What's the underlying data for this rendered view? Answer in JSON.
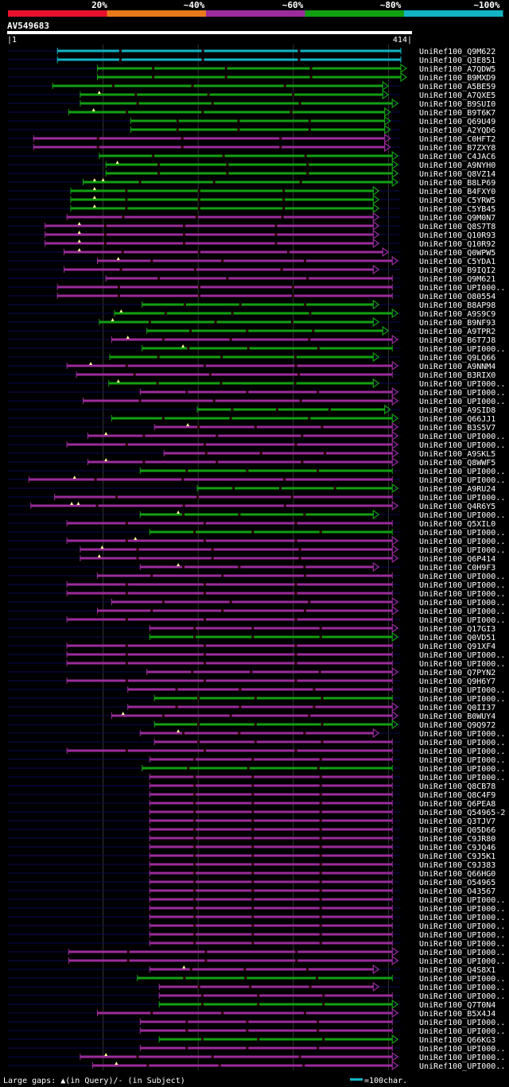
{
  "legend": {
    "labels": [
      "20%",
      "~40%",
      "~60%",
      "~80%",
      "~100%"
    ],
    "colors": [
      "#e8112d",
      "#e87a1b",
      "#9b2c9b",
      "#12a012",
      "#12b4c4"
    ]
  },
  "query": {
    "id": "AV549683",
    "start_label": "|1",
    "end_label": "414|",
    "length": 414
  },
  "footer": {
    "gaps_text": "Large gaps: ▲(in Query)/- (in Subject)",
    "scale_text": "=100char."
  },
  "colors": {
    "background": "#000000",
    "backbone": "#0a0a55",
    "grid": "#333333",
    "subject_gap": "#330000",
    "gap_marker": "#ffff99"
  },
  "hits": [
    {
      "name": "UniRef100_Q9M622",
      "start": 53,
      "end": 414,
      "color": "#12b4c4",
      "arrow": false,
      "gaps_q": []
    },
    {
      "name": "UniRef100_Q3E851",
      "start": 53,
      "end": 414,
      "color": "#12b4c4",
      "arrow": false,
      "gaps_q": []
    },
    {
      "name": "UniRef100_A7QDW5",
      "start": 95,
      "end": 414,
      "color": "#12a012",
      "arrow": true,
      "gaps_q": []
    },
    {
      "name": "UniRef100_B9MXD9",
      "start": 95,
      "end": 414,
      "color": "#12a012",
      "arrow": true,
      "gaps_q": []
    },
    {
      "name": "UniRef100_A5BE59",
      "start": 48,
      "end": 395,
      "color": "#12a012",
      "arrow": true,
      "gaps_q": []
    },
    {
      "name": "UniRef100_A7QXE5",
      "start": 77,
      "end": 395,
      "color": "#12a012",
      "arrow": true,
      "gaps_q": [
        97
      ]
    },
    {
      "name": "UniRef100_B9SUI0",
      "start": 77,
      "end": 405,
      "color": "#12a012",
      "arrow": true,
      "gaps_q": []
    },
    {
      "name": "UniRef100_B9T6K7",
      "start": 65,
      "end": 397,
      "color": "#12a012",
      "arrow": true,
      "gaps_q": [
        91
      ]
    },
    {
      "name": "UniRef100_Q69U49",
      "start": 130,
      "end": 397,
      "color": "#12a012",
      "arrow": true,
      "gaps_q": []
    },
    {
      "name": "UniRef100_A2YQD6",
      "start": 130,
      "end": 397,
      "color": "#12a012",
      "arrow": true,
      "gaps_q": []
    },
    {
      "name": "UniRef100_C0HFT2",
      "start": 28,
      "end": 397,
      "color": "#9b2c9b",
      "arrow": true,
      "gaps_q": []
    },
    {
      "name": "UniRef100_B7ZXY8",
      "start": 28,
      "end": 397,
      "color": "#9b2c9b",
      "arrow": true,
      "gaps_q": []
    },
    {
      "name": "UniRef100_C4JAC6",
      "start": 97,
      "end": 405,
      "color": "#12a012",
      "arrow": true,
      "gaps_q": []
    },
    {
      "name": "UniRef100_A9NYH0",
      "start": 104,
      "end": 405,
      "color": "#12a012",
      "arrow": true,
      "gaps_q": [
        116
      ]
    },
    {
      "name": "UniRef100_Q8VZ14",
      "start": 104,
      "end": 405,
      "color": "#12a012",
      "arrow": true,
      "gaps_q": []
    },
    {
      "name": "UniRef100_B8LP69",
      "start": 80,
      "end": 405,
      "color": "#12a012",
      "arrow": true,
      "gaps_q": [
        92,
        101
      ]
    },
    {
      "name": "UniRef100_B4FXY0",
      "start": 67,
      "end": 385,
      "color": "#12a012",
      "arrow": true,
      "gaps_q": [
        92
      ]
    },
    {
      "name": "UniRef100_C5YRW5",
      "start": 67,
      "end": 385,
      "color": "#12a012",
      "arrow": true,
      "gaps_q": [
        92
      ]
    },
    {
      "name": "UniRef100_C5YB45",
      "start": 67,
      "end": 385,
      "color": "#12a012",
      "arrow": true,
      "gaps_q": [
        92
      ]
    },
    {
      "name": "UniRef100_Q9M0N7",
      "start": 63,
      "end": 385,
      "color": "#9b2c9b",
      "arrow": true,
      "gaps_q": []
    },
    {
      "name": "UniRef100_Q8S7T8",
      "start": 40,
      "end": 385,
      "color": "#9b2c9b",
      "arrow": true,
      "gaps_q": [
        76
      ]
    },
    {
      "name": "UniRef100_Q10R93",
      "start": 40,
      "end": 385,
      "color": "#9b2c9b",
      "arrow": true,
      "gaps_q": [
        76
      ]
    },
    {
      "name": "UniRef100_Q10R92",
      "start": 40,
      "end": 385,
      "color": "#9b2c9b",
      "arrow": true,
      "gaps_q": [
        76
      ]
    },
    {
      "name": "UniRef100_Q0WPW5",
      "start": 60,
      "end": 395,
      "color": "#9b2c9b",
      "arrow": true,
      "gaps_q": [
        76
      ]
    },
    {
      "name": "UniRef100_C5YDA1",
      "start": 95,
      "end": 405,
      "color": "#9b2c9b",
      "arrow": true,
      "gaps_q": [
        117
      ]
    },
    {
      "name": "UniRef100_B9IQI2",
      "start": 60,
      "end": 385,
      "color": "#9b2c9b",
      "arrow": true,
      "gaps_q": []
    },
    {
      "name": "UniRef100_Q9M621",
      "start": 104,
      "end": 405,
      "color": "#9b2c9b",
      "arrow": false,
      "gaps_q": []
    },
    {
      "name": "UniRef100_UPI000..",
      "start": 53,
      "end": 405,
      "color": "#9b2c9b",
      "arrow": false,
      "gaps_q": []
    },
    {
      "name": "UniRef100_O80554",
      "start": 53,
      "end": 405,
      "color": "#9b2c9b",
      "arrow": false,
      "gaps_q": []
    },
    {
      "name": "UniRef100_B8AP98",
      "start": 142,
      "end": 385,
      "color": "#12a012",
      "arrow": true,
      "gaps_q": []
    },
    {
      "name": "UniRef100_A9S9C9",
      "start": 113,
      "end": 405,
      "color": "#12a012",
      "arrow": true,
      "gaps_q": [
        120
      ]
    },
    {
      "name": "UniRef100_B9NF93",
      "start": 97,
      "end": 385,
      "color": "#12a012",
      "arrow": true,
      "gaps_q": [
        111
      ]
    },
    {
      "name": "UniRef100_A9TPR2",
      "start": 147,
      "end": 395,
      "color": "#12a012",
      "arrow": true,
      "gaps_q": []
    },
    {
      "name": "UniRef100_B6T7J8",
      "start": 110,
      "end": 405,
      "color": "#9b2c9b",
      "arrow": true,
      "gaps_q": [
        127
      ]
    },
    {
      "name": "UniRef100_UPI000..",
      "start": 142,
      "end": 405,
      "color": "#12a012",
      "arrow": false,
      "gaps_q": [
        185
      ]
    },
    {
      "name": "UniRef100_Q9LQ66",
      "start": 108,
      "end": 385,
      "color": "#12a012",
      "arrow": true,
      "gaps_q": []
    },
    {
      "name": "UniRef100_A9NNM4",
      "start": 63,
      "end": 405,
      "color": "#9b2c9b",
      "arrow": true,
      "gaps_q": [
        88
      ]
    },
    {
      "name": "UniRef100_B3RIX0",
      "start": 73,
      "end": 405,
      "color": "#9b2c9b",
      "arrow": false,
      "gaps_q": []
    },
    {
      "name": "UniRef100_UPI000..",
      "start": 107,
      "end": 385,
      "color": "#12a012",
      "arrow": true,
      "gaps_q": [
        117
      ]
    },
    {
      "name": "UniRef100_UPI000..",
      "start": 140,
      "end": 405,
      "color": "#9b2c9b",
      "arrow": true,
      "gaps_q": []
    },
    {
      "name": "UniRef100_UPI000..",
      "start": 80,
      "end": 405,
      "color": "#9b2c9b",
      "arrow": true,
      "gaps_q": []
    },
    {
      "name": "UniRef100_A9SID8",
      "start": 200,
      "end": 397,
      "color": "#12a012",
      "arrow": true,
      "gaps_q": []
    },
    {
      "name": "UniRef100_Q66JJ1",
      "start": 110,
      "end": 405,
      "color": "#12a012",
      "arrow": true,
      "gaps_q": []
    },
    {
      "name": "UniRef100_B3S5V7",
      "start": 155,
      "end": 405,
      "color": "#9b2c9b",
      "arrow": true,
      "gaps_q": [
        190
      ]
    },
    {
      "name": "UniRef100_UPI000..",
      "start": 85,
      "end": 405,
      "color": "#9b2c9b",
      "arrow": true,
      "gaps_q": [
        104
      ]
    },
    {
      "name": "UniRef100_UPI000..",
      "start": 63,
      "end": 405,
      "color": "#9b2c9b",
      "arrow": true,
      "gaps_q": []
    },
    {
      "name": "UniRef100_A9SKL5",
      "start": 165,
      "end": 405,
      "color": "#9b2c9b",
      "arrow": true,
      "gaps_q": []
    },
    {
      "name": "UniRef100_Q8WWF5",
      "start": 85,
      "end": 405,
      "color": "#9b2c9b",
      "arrow": true,
      "gaps_q": [
        104
      ]
    },
    {
      "name": "UniRef100_UPI000..",
      "start": 140,
      "end": 405,
      "color": "#12a012",
      "arrow": false,
      "gaps_q": []
    },
    {
      "name": "UniRef100_UPI000..",
      "start": 23,
      "end": 405,
      "color": "#9b2c9b",
      "arrow": false,
      "gaps_q": [
        71
      ]
    },
    {
      "name": "UniRef100_A9RU24",
      "start": 200,
      "end": 405,
      "color": "#12a012",
      "arrow": true,
      "gaps_q": []
    },
    {
      "name": "UniRef100_UPI000..",
      "start": 50,
      "end": 405,
      "color": "#9b2c9b",
      "arrow": false,
      "gaps_q": []
    },
    {
      "name": "UniRef100_Q4R6Y5",
      "start": 25,
      "end": 405,
      "color": "#9b2c9b",
      "arrow": true,
      "gaps_q": [
        68,
        75
      ]
    },
    {
      "name": "UniRef100_UPI000..",
      "start": 140,
      "end": 385,
      "color": "#12a012",
      "arrow": true,
      "gaps_q": [
        180
      ]
    },
    {
      "name": "UniRef100_Q5XIL0",
      "start": 63,
      "end": 405,
      "color": "#9b2c9b",
      "arrow": false,
      "gaps_q": []
    },
    {
      "name": "UniRef100_UPI000..",
      "start": 150,
      "end": 405,
      "color": "#12a012",
      "arrow": false,
      "gaps_q": []
    },
    {
      "name": "UniRef100_UPI000..",
      "start": 63,
      "end": 405,
      "color": "#9b2c9b",
      "arrow": true,
      "gaps_q": [
        135
      ]
    },
    {
      "name": "UniRef100_UPI000..",
      "start": 77,
      "end": 405,
      "color": "#9b2c9b",
      "arrow": true,
      "gaps_q": [
        100
      ]
    },
    {
      "name": "UniRef100_Q6P414",
      "start": 77,
      "end": 405,
      "color": "#9b2c9b",
      "arrow": true,
      "gaps_q": [
        97
      ]
    },
    {
      "name": "UniRef100_C0H9F3",
      "start": 140,
      "end": 385,
      "color": "#9b2c9b",
      "arrow": true,
      "gaps_q": [
        180
      ]
    },
    {
      "name": "UniRef100_UPI000..",
      "start": 95,
      "end": 405,
      "color": "#9b2c9b",
      "arrow": false,
      "gaps_q": []
    },
    {
      "name": "UniRef100_UPI000..",
      "start": 63,
      "end": 405,
      "color": "#9b2c9b",
      "arrow": false,
      "gaps_q": []
    },
    {
      "name": "UniRef100_UPI000..",
      "start": 63,
      "end": 405,
      "color": "#9b2c9b",
      "arrow": false,
      "gaps_q": []
    },
    {
      "name": "UniRef100_UPI000..",
      "start": 110,
      "end": 405,
      "color": "#9b2c9b",
      "arrow": true,
      "gaps_q": []
    },
    {
      "name": "UniRef100_UPI000..",
      "start": 95,
      "end": 405,
      "color": "#9b2c9b",
      "arrow": true,
      "gaps_q": []
    },
    {
      "name": "UniRef100_UPI000..",
      "start": 63,
      "end": 405,
      "color": "#9b2c9b",
      "arrow": false,
      "gaps_q": []
    },
    {
      "name": "UniRef100_Q17GI3",
      "start": 150,
      "end": 405,
      "color": "#9b2c9b",
      "arrow": true,
      "gaps_q": []
    },
    {
      "name": "UniRef100_Q0VD51",
      "start": 150,
      "end": 405,
      "color": "#12a012",
      "arrow": true,
      "gaps_q": []
    },
    {
      "name": "UniRef100_Q91XF4",
      "start": 63,
      "end": 405,
      "color": "#9b2c9b",
      "arrow": false,
      "gaps_q": []
    },
    {
      "name": "UniRef100_UPI000..",
      "start": 63,
      "end": 405,
      "color": "#9b2c9b",
      "arrow": false,
      "gaps_q": []
    },
    {
      "name": "UniRef100_UPI000..",
      "start": 63,
      "end": 405,
      "color": "#9b2c9b",
      "arrow": false,
      "gaps_q": []
    },
    {
      "name": "UniRef100_Q7PYN2",
      "start": 147,
      "end": 405,
      "color": "#9b2c9b",
      "arrow": true,
      "gaps_q": []
    },
    {
      "name": "UniRef100_Q9H6Y7",
      "start": 63,
      "end": 405,
      "color": "#9b2c9b",
      "arrow": false,
      "gaps_q": []
    },
    {
      "name": "UniRef100_UPI000..",
      "start": 127,
      "end": 405,
      "color": "#9b2c9b",
      "arrow": false,
      "gaps_q": []
    },
    {
      "name": "UniRef100_UPI000..",
      "start": 155,
      "end": 405,
      "color": "#12a012",
      "arrow": false,
      "gaps_q": []
    },
    {
      "name": "UniRef100_Q0II37",
      "start": 127,
      "end": 405,
      "color": "#9b2c9b",
      "arrow": true,
      "gaps_q": []
    },
    {
      "name": "UniRef100_B0WUY4",
      "start": 110,
      "end": 405,
      "color": "#9b2c9b",
      "arrow": true,
      "gaps_q": [
        122
      ]
    },
    {
      "name": "UniRef100_Q9Q972",
      "start": 155,
      "end": 405,
      "color": "#12a012",
      "arrow": true,
      "gaps_q": []
    },
    {
      "name": "UniRef100_UPI000..",
      "start": 140,
      "end": 385,
      "color": "#9b2c9b",
      "arrow": true,
      "gaps_q": [
        180
      ]
    },
    {
      "name": "UniRef100_UPI000..",
      "start": 155,
      "end": 405,
      "color": "#9b2c9b",
      "arrow": false,
      "gaps_q": []
    },
    {
      "name": "UniRef100_UPI000..",
      "start": 63,
      "end": 405,
      "color": "#9b2c9b",
      "arrow": false,
      "gaps_q": []
    },
    {
      "name": "UniRef100_UPI000..",
      "start": 150,
      "end": 405,
      "color": "#9b2c9b",
      "arrow": false,
      "gaps_q": []
    },
    {
      "name": "UniRef100_UPI000..",
      "start": 142,
      "end": 405,
      "color": "#12a012",
      "arrow": false,
      "gaps_q": []
    },
    {
      "name": "UniRef100_UPI000..",
      "start": 150,
      "end": 405,
      "color": "#9b2c9b",
      "arrow": false,
      "gaps_q": []
    },
    {
      "name": "UniRef100_Q8CB78",
      "start": 150,
      "end": 405,
      "color": "#9b2c9b",
      "arrow": false,
      "gaps_q": []
    },
    {
      "name": "UniRef100_Q8C4F9",
      "start": 150,
      "end": 405,
      "color": "#9b2c9b",
      "arrow": false,
      "gaps_q": []
    },
    {
      "name": "UniRef100_Q6PEA8",
      "start": 150,
      "end": 405,
      "color": "#9b2c9b",
      "arrow": false,
      "gaps_q": []
    },
    {
      "name": "UniRef100_Q54965-2",
      "start": 150,
      "end": 405,
      "color": "#9b2c9b",
      "arrow": false,
      "gaps_q": []
    },
    {
      "name": "UniRef100_Q3TJV7",
      "start": 150,
      "end": 405,
      "color": "#9b2c9b",
      "arrow": false,
      "gaps_q": []
    },
    {
      "name": "UniRef100_Q05D66",
      "start": 150,
      "end": 405,
      "color": "#9b2c9b",
      "arrow": false,
      "gaps_q": []
    },
    {
      "name": "UniRef100_C9JR80",
      "start": 150,
      "end": 405,
      "color": "#9b2c9b",
      "arrow": false,
      "gaps_q": []
    },
    {
      "name": "UniRef100_C9JQ46",
      "start": 150,
      "end": 405,
      "color": "#9b2c9b",
      "arrow": false,
      "gaps_q": []
    },
    {
      "name": "UniRef100_C9J5K1",
      "start": 150,
      "end": 405,
      "color": "#9b2c9b",
      "arrow": false,
      "gaps_q": []
    },
    {
      "name": "UniRef100_C9J383",
      "start": 150,
      "end": 405,
      "color": "#9b2c9b",
      "arrow": false,
      "gaps_q": []
    },
    {
      "name": "UniRef100_Q66HG0",
      "start": 150,
      "end": 405,
      "color": "#9b2c9b",
      "arrow": false,
      "gaps_q": []
    },
    {
      "name": "UniRef100_O54965",
      "start": 150,
      "end": 405,
      "color": "#9b2c9b",
      "arrow": false,
      "gaps_q": []
    },
    {
      "name": "UniRef100_O43567",
      "start": 150,
      "end": 405,
      "color": "#9b2c9b",
      "arrow": false,
      "gaps_q": []
    },
    {
      "name": "UniRef100_UPI000..",
      "start": 150,
      "end": 405,
      "color": "#9b2c9b",
      "arrow": false,
      "gaps_q": []
    },
    {
      "name": "UniRef100_UPI000..",
      "start": 150,
      "end": 405,
      "color": "#9b2c9b",
      "arrow": false,
      "gaps_q": []
    },
    {
      "name": "UniRef100_UPI000..",
      "start": 150,
      "end": 405,
      "color": "#9b2c9b",
      "arrow": false,
      "gaps_q": []
    },
    {
      "name": "UniRef100_UPI000..",
      "start": 150,
      "end": 405,
      "color": "#9b2c9b",
      "arrow": false,
      "gaps_q": []
    },
    {
      "name": "UniRef100_UPI000..",
      "start": 150,
      "end": 405,
      "color": "#9b2c9b",
      "arrow": false,
      "gaps_q": []
    },
    {
      "name": "UniRef100_UPI000..",
      "start": 150,
      "end": 405,
      "color": "#9b2c9b",
      "arrow": false,
      "gaps_q": []
    },
    {
      "name": "UniRef100_UPI000..",
      "start": 65,
      "end": 405,
      "color": "#9b2c9b",
      "arrow": true,
      "gaps_q": []
    },
    {
      "name": "UniRef100_UPI000..",
      "start": 65,
      "end": 405,
      "color": "#9b2c9b",
      "arrow": true,
      "gaps_q": []
    },
    {
      "name": "UniRef100_Q4S8X1",
      "start": 150,
      "end": 385,
      "color": "#9b2c9b",
      "arrow": true,
      "gaps_q": [
        186
      ]
    },
    {
      "name": "UniRef100_UPI000..",
      "start": 137,
      "end": 405,
      "color": "#12a012",
      "arrow": false,
      "gaps_q": []
    },
    {
      "name": "UniRef100_UPI000..",
      "start": 160,
      "end": 385,
      "color": "#9b2c9b",
      "arrow": true,
      "gaps_q": []
    },
    {
      "name": "UniRef100_UPI000..",
      "start": 160,
      "end": 405,
      "color": "#9b2c9b",
      "arrow": false,
      "gaps_q": []
    },
    {
      "name": "UniRef100_Q7T0N4",
      "start": 160,
      "end": 405,
      "color": "#12a012",
      "arrow": true,
      "gaps_q": []
    },
    {
      "name": "UniRef100_B5X4J4",
      "start": 95,
      "end": 405,
      "color": "#9b2c9b",
      "arrow": true,
      "gaps_q": []
    },
    {
      "name": "UniRef100_UPI000..",
      "start": 140,
      "end": 405,
      "color": "#9b2c9b",
      "arrow": false,
      "gaps_q": []
    },
    {
      "name": "UniRef100_UPI000..",
      "start": 140,
      "end": 405,
      "color": "#9b2c9b",
      "arrow": false,
      "gaps_q": []
    },
    {
      "name": "UniRef100_Q66KG3",
      "start": 160,
      "end": 405,
      "color": "#12a012",
      "arrow": true,
      "gaps_q": []
    },
    {
      "name": "UniRef100_UPI000..",
      "start": 140,
      "end": 405,
      "color": "#9b2c9b",
      "arrow": false,
      "gaps_q": []
    },
    {
      "name": "UniRef100_UPI000..",
      "start": 77,
      "end": 405,
      "color": "#9b2c9b",
      "arrow": true,
      "gaps_q": [
        104
      ]
    },
    {
      "name": "UniRef100_UPI000..",
      "start": 90,
      "end": 405,
      "color": "#9b2c9b",
      "arrow": true,
      "gaps_q": [
        115
      ]
    }
  ]
}
